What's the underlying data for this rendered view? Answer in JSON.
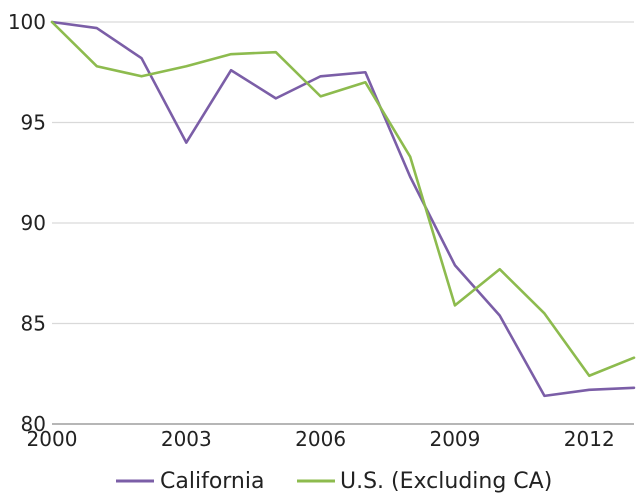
{
  "chart_data": {
    "type": "line",
    "x": [
      2000,
      2001,
      2002,
      2003,
      2004,
      2005,
      2006,
      2007,
      2008,
      2009,
      2010,
      2011,
      2012,
      2013
    ],
    "series": [
      {
        "name": "California",
        "color": "#7b5ea7",
        "values": [
          100.0,
          99.7,
          98.2,
          94.0,
          97.6,
          96.2,
          97.3,
          97.5,
          92.3,
          87.9,
          85.4,
          81.4,
          81.7,
          81.8
        ]
      },
      {
        "name": "U.S. (Excluding CA)",
        "color": "#8dbb4e",
        "values": [
          100.0,
          97.8,
          97.3,
          97.8,
          98.4,
          98.5,
          96.3,
          97.0,
          93.3,
          85.9,
          87.7,
          85.5,
          82.4,
          83.3
        ]
      }
    ],
    "xlim": [
      2000,
      2013
    ],
    "ylim": [
      80,
      100
    ],
    "xticks": [
      2000,
      2003,
      2006,
      2009,
      2012
    ],
    "yticks": [
      80,
      85,
      90,
      95,
      100
    ],
    "xtick_labels": [
      "2000",
      "2003",
      "2006",
      "2009",
      "2012"
    ],
    "ytick_labels": [
      "80",
      "85",
      "90",
      "95",
      "100"
    ],
    "grid": "horizontal",
    "grid_color": "#d9d9d9",
    "legend_position": "bottom",
    "title": "",
    "xlabel": "",
    "ylabel": ""
  }
}
